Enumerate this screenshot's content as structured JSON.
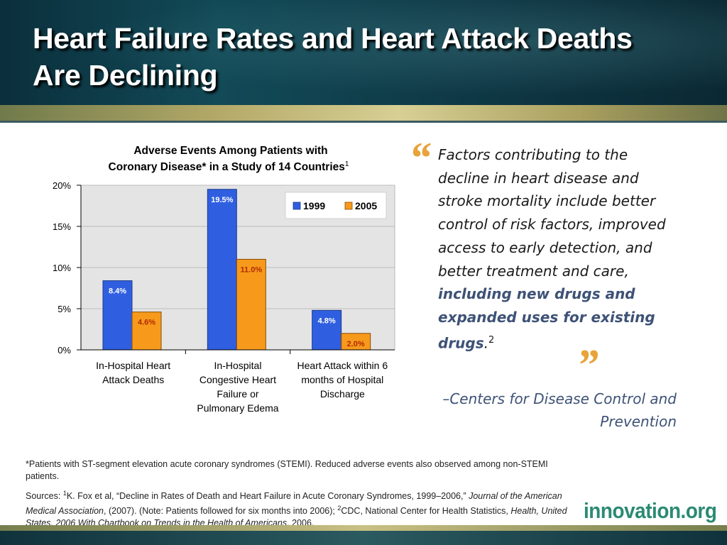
{
  "slide": {
    "title": "Heart Failure Rates and Heart Attack Deaths Are Declining"
  },
  "quote": {
    "part1": "Factors contributing to the decline in heart disease and stroke mortality include better control of risk factors, improved access to early detection, and better treatment and care, ",
    "emphasis": "including new drugs and expanded uses for existing drugs",
    "end_punct": ".",
    "ref": "2",
    "open_mark": "“",
    "close_mark": "”",
    "attribution": "–Centers for Disease Control and Prevention"
  },
  "footnote": "*Patients with ST-segment elevation acute coronary syndromes (STEMI). Reduced adverse events also observed among non-STEMI patients.",
  "sources": {
    "lead": "Sources: ",
    "ref1": "1",
    "s1_text": "K. Fox et al, “Decline in Rates of Death and Heart Failure in Acute Coronary Syndromes, 1999–2006,” ",
    "s1_journal": "Journal of the American Medical Association",
    "s1_tail": ", (2007). (Note: Patients followed for six months into 2006); ",
    "ref2": "2",
    "s2_text": "CDC, National Center for Health Statistics, ",
    "s2_pub": "Health, United States, 2006 With Chartbook on Trends in the Health of Americans",
    "s2_tail": ", 2006."
  },
  "logo": "innovation.org",
  "chart_data": {
    "type": "bar",
    "title_line1": "Adverse Events Among Patients with",
    "title_line2": "Coronary Disease* in a Study of 14 Countries",
    "title_sup": "1",
    "categories": [
      [
        "In-Hospital Heart",
        "Attack Deaths"
      ],
      [
        "In-Hospital",
        "Congestive Heart",
        "Failure or",
        "Pulmonary Edema"
      ],
      [
        "Heart Attack within 6",
        "months of Hospital",
        "Discharge"
      ]
    ],
    "series": [
      {
        "name": "1999",
        "values": [
          8.4,
          19.5,
          4.8
        ],
        "labels": [
          "8.4%",
          "19.5%",
          "4.8%"
        ],
        "color": "#2f5fe0",
        "label_color": "#ffffff"
      },
      {
        "name": "2005",
        "values": [
          4.6,
          11.0,
          2.0
        ],
        "labels": [
          "4.6%",
          "11.0%",
          "2.0%"
        ],
        "color": "#f79a1c",
        "label_color": "#b22a00"
      }
    ],
    "yticks": [
      0,
      5,
      10,
      15,
      20
    ],
    "ytick_labels": [
      "0%",
      "5%",
      "10%",
      "15%",
      "20%"
    ],
    "ylim": [
      0,
      20
    ],
    "grid": true,
    "legend": "top-right",
    "plot_background": "#e4e4e4"
  }
}
